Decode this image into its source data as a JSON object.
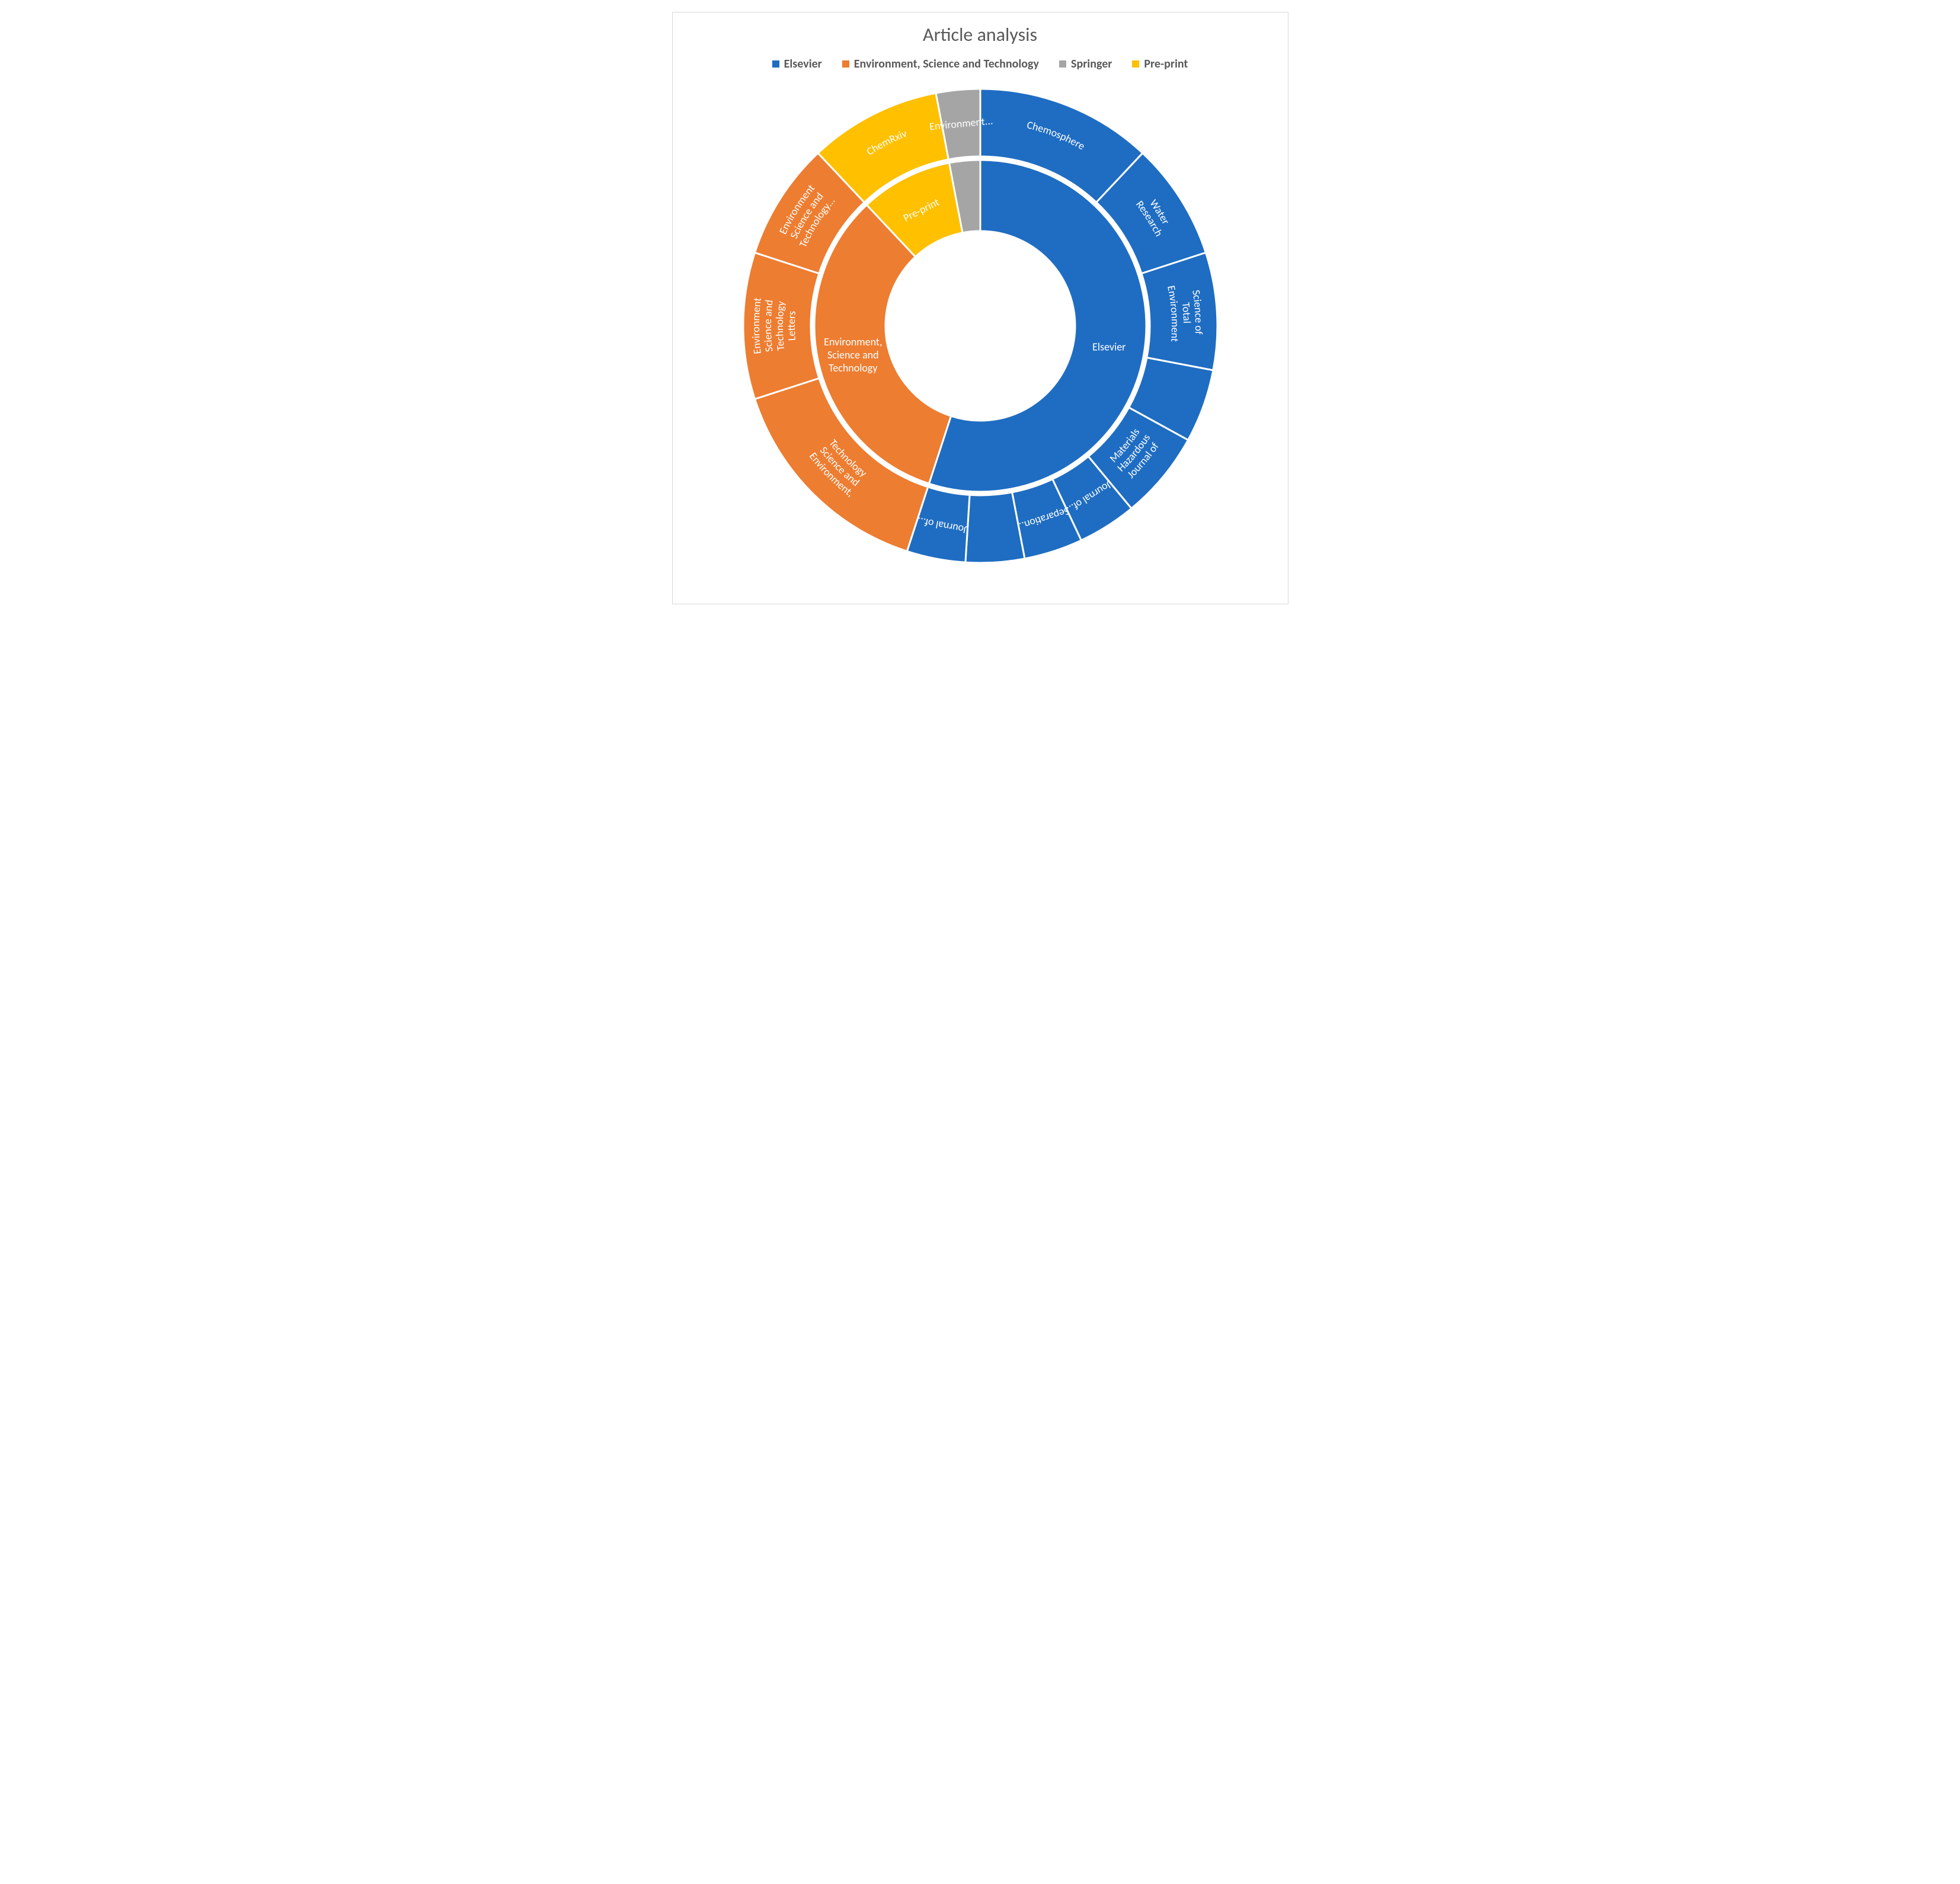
{
  "chart": {
    "type": "sunburst",
    "title": "Article analysis",
    "title_fontsize": 32,
    "title_color": "#595959",
    "background_color": "#ffffff",
    "frame_border_color": "#d9d9d9",
    "label_color": "#ffffff",
    "label_fontsize": 18,
    "legend_fontsize": 20,
    "stroke_color": "#ffffff",
    "stroke_width": 3,
    "inner_ring_radii": [
      160,
      280
    ],
    "outer_ring_radii": [
      286,
      400
    ],
    "categories": [
      {
        "name": "Elsevier",
        "color": "#1f6dc2",
        "value": 55
      },
      {
        "name": "Environment, Science and Technology",
        "color": "#ed7d31",
        "value": 33
      },
      {
        "name": "Springer",
        "color": "#a5a5a5",
        "value": 3
      },
      {
        "name": "Pre-print",
        "color": "#ffc000",
        "value": 9
      }
    ],
    "inner": [
      {
        "parent": "Elsevier",
        "label": "Elsevier",
        "value": 55
      },
      {
        "parent": "Environment, Science and Technology",
        "label": "Environment, Science and Technology",
        "value": 33
      },
      {
        "parent": "Pre-print",
        "label": "Pre-print",
        "value": 9
      },
      {
        "parent": "Springer",
        "label": "",
        "value": 3
      }
    ],
    "outer": [
      {
        "parent": "Elsevier",
        "label": "Chemosphere",
        "value": 12
      },
      {
        "parent": "Elsevier",
        "label": "Water Research",
        "value": 8
      },
      {
        "parent": "Elsevier",
        "label": "Science of Total Environment",
        "value": 8
      },
      {
        "parent": "Elsevier",
        "label": "",
        "value": 5
      },
      {
        "parent": "Elsevier",
        "label": "Journal of Hazardous Materials",
        "value": 6
      },
      {
        "parent": "Elsevier",
        "label": "Journal of...",
        "value": 4
      },
      {
        "parent": "Elsevier",
        "label": "Separation...",
        "value": 4
      },
      {
        "parent": "Elsevier",
        "label": "",
        "value": 4
      },
      {
        "parent": "Elsevier",
        "label": "Journal of...",
        "value": 4
      },
      {
        "parent": "Environment, Science and Technology",
        "label": "Environment, Science and Technology",
        "value": 15
      },
      {
        "parent": "Environment, Science and Technology",
        "label": "Environment Science and Technology Letters",
        "value": 10
      },
      {
        "parent": "Environment, Science and Technology",
        "label": "Environment Science and Technology...",
        "value": 8
      },
      {
        "parent": "Pre-print",
        "label": "ChemRxiv",
        "value": 9
      },
      {
        "parent": "Springer",
        "label": "Environment...",
        "value": 3
      }
    ]
  }
}
